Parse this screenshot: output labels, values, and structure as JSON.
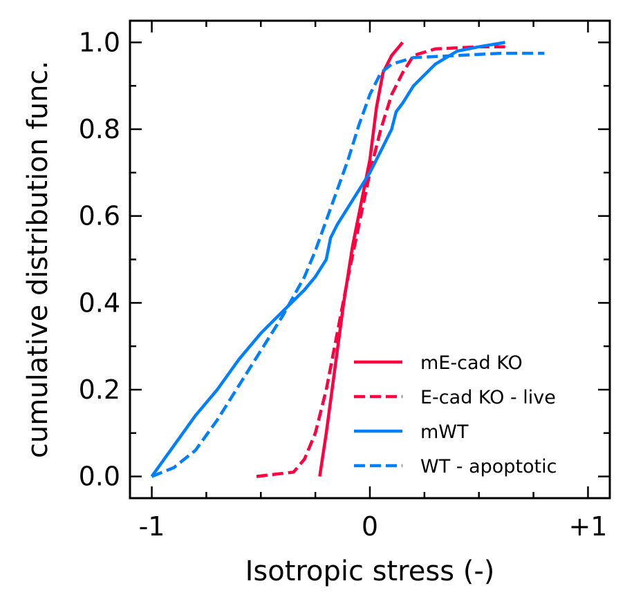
{
  "chart_data": {
    "type": "line",
    "xlabel": "Isotropic stress (-)",
    "ylabel": "cumulative distribution func.",
    "xlim": [
      -1.1,
      1.1
    ],
    "ylim": [
      -0.05,
      1.05
    ],
    "x_ticks": [
      -1,
      0,
      1
    ],
    "x_tick_labels": [
      "-1",
      "0",
      "+1"
    ],
    "x_minor_ticks": [
      -0.75,
      -0.5,
      -0.25,
      0.25,
      0.5,
      0.75
    ],
    "y_ticks": [
      0,
      0.2,
      0.4,
      0.6,
      0.8,
      1.0
    ],
    "y_tick_labels": [
      "0.0",
      "0.2",
      "0.4",
      "0.6",
      "0.8",
      "1.0"
    ],
    "y_minor_ticks": [
      0.1,
      0.3,
      0.5,
      0.7,
      0.9
    ],
    "grid": false,
    "legend_position": "bottom-right",
    "series": [
      {
        "name": "mE-cad KO",
        "color": "#ff0040",
        "dash": "solid",
        "x": [
          -0.23,
          -0.2,
          -0.16,
          -0.12,
          -0.08,
          -0.04,
          0.0,
          0.03,
          0.06,
          0.1,
          0.15
        ],
        "y": [
          0.0,
          0.1,
          0.25,
          0.4,
          0.53,
          0.63,
          0.73,
          0.85,
          0.93,
          0.97,
          1.0
        ]
      },
      {
        "name": "E-cad KO - live",
        "color": "#ff0040",
        "dash": "dashed",
        "x": [
          -0.52,
          -0.35,
          -0.3,
          -0.25,
          -0.2,
          -0.15,
          -0.1,
          -0.05,
          0.0,
          0.05,
          0.1,
          0.15,
          0.2,
          0.3,
          0.5,
          0.62
        ],
        "y": [
          0.0,
          0.01,
          0.04,
          0.1,
          0.2,
          0.33,
          0.46,
          0.58,
          0.7,
          0.8,
          0.88,
          0.93,
          0.97,
          0.985,
          0.99,
          0.99
        ]
      },
      {
        "name": "mWT",
        "color": "#0080ff",
        "dash": "solid",
        "x": [
          -1.0,
          -0.9,
          -0.8,
          -0.7,
          -0.6,
          -0.5,
          -0.4,
          -0.3,
          -0.25,
          -0.2,
          -0.18,
          -0.15,
          -0.1,
          -0.05,
          0.0,
          0.05,
          0.1,
          0.12,
          0.15,
          0.2,
          0.3,
          0.4,
          0.5,
          0.62
        ],
        "y": [
          0.0,
          0.07,
          0.14,
          0.2,
          0.27,
          0.33,
          0.38,
          0.43,
          0.46,
          0.5,
          0.55,
          0.58,
          0.62,
          0.66,
          0.7,
          0.75,
          0.8,
          0.84,
          0.86,
          0.9,
          0.95,
          0.98,
          0.99,
          1.0
        ]
      },
      {
        "name": "WT - apoptotic",
        "color": "#0080ff",
        "dash": "dashed",
        "x": [
          -1.0,
          -0.9,
          -0.8,
          -0.7,
          -0.6,
          -0.5,
          -0.4,
          -0.3,
          -0.25,
          -0.2,
          -0.15,
          -0.1,
          -0.05,
          0.0,
          0.05,
          0.1,
          0.2,
          0.4,
          0.6,
          0.8
        ],
        "y": [
          0.0,
          0.02,
          0.06,
          0.13,
          0.21,
          0.29,
          0.37,
          0.46,
          0.52,
          0.59,
          0.66,
          0.73,
          0.81,
          0.88,
          0.93,
          0.95,
          0.965,
          0.97,
          0.975,
          0.975
        ]
      }
    ]
  }
}
